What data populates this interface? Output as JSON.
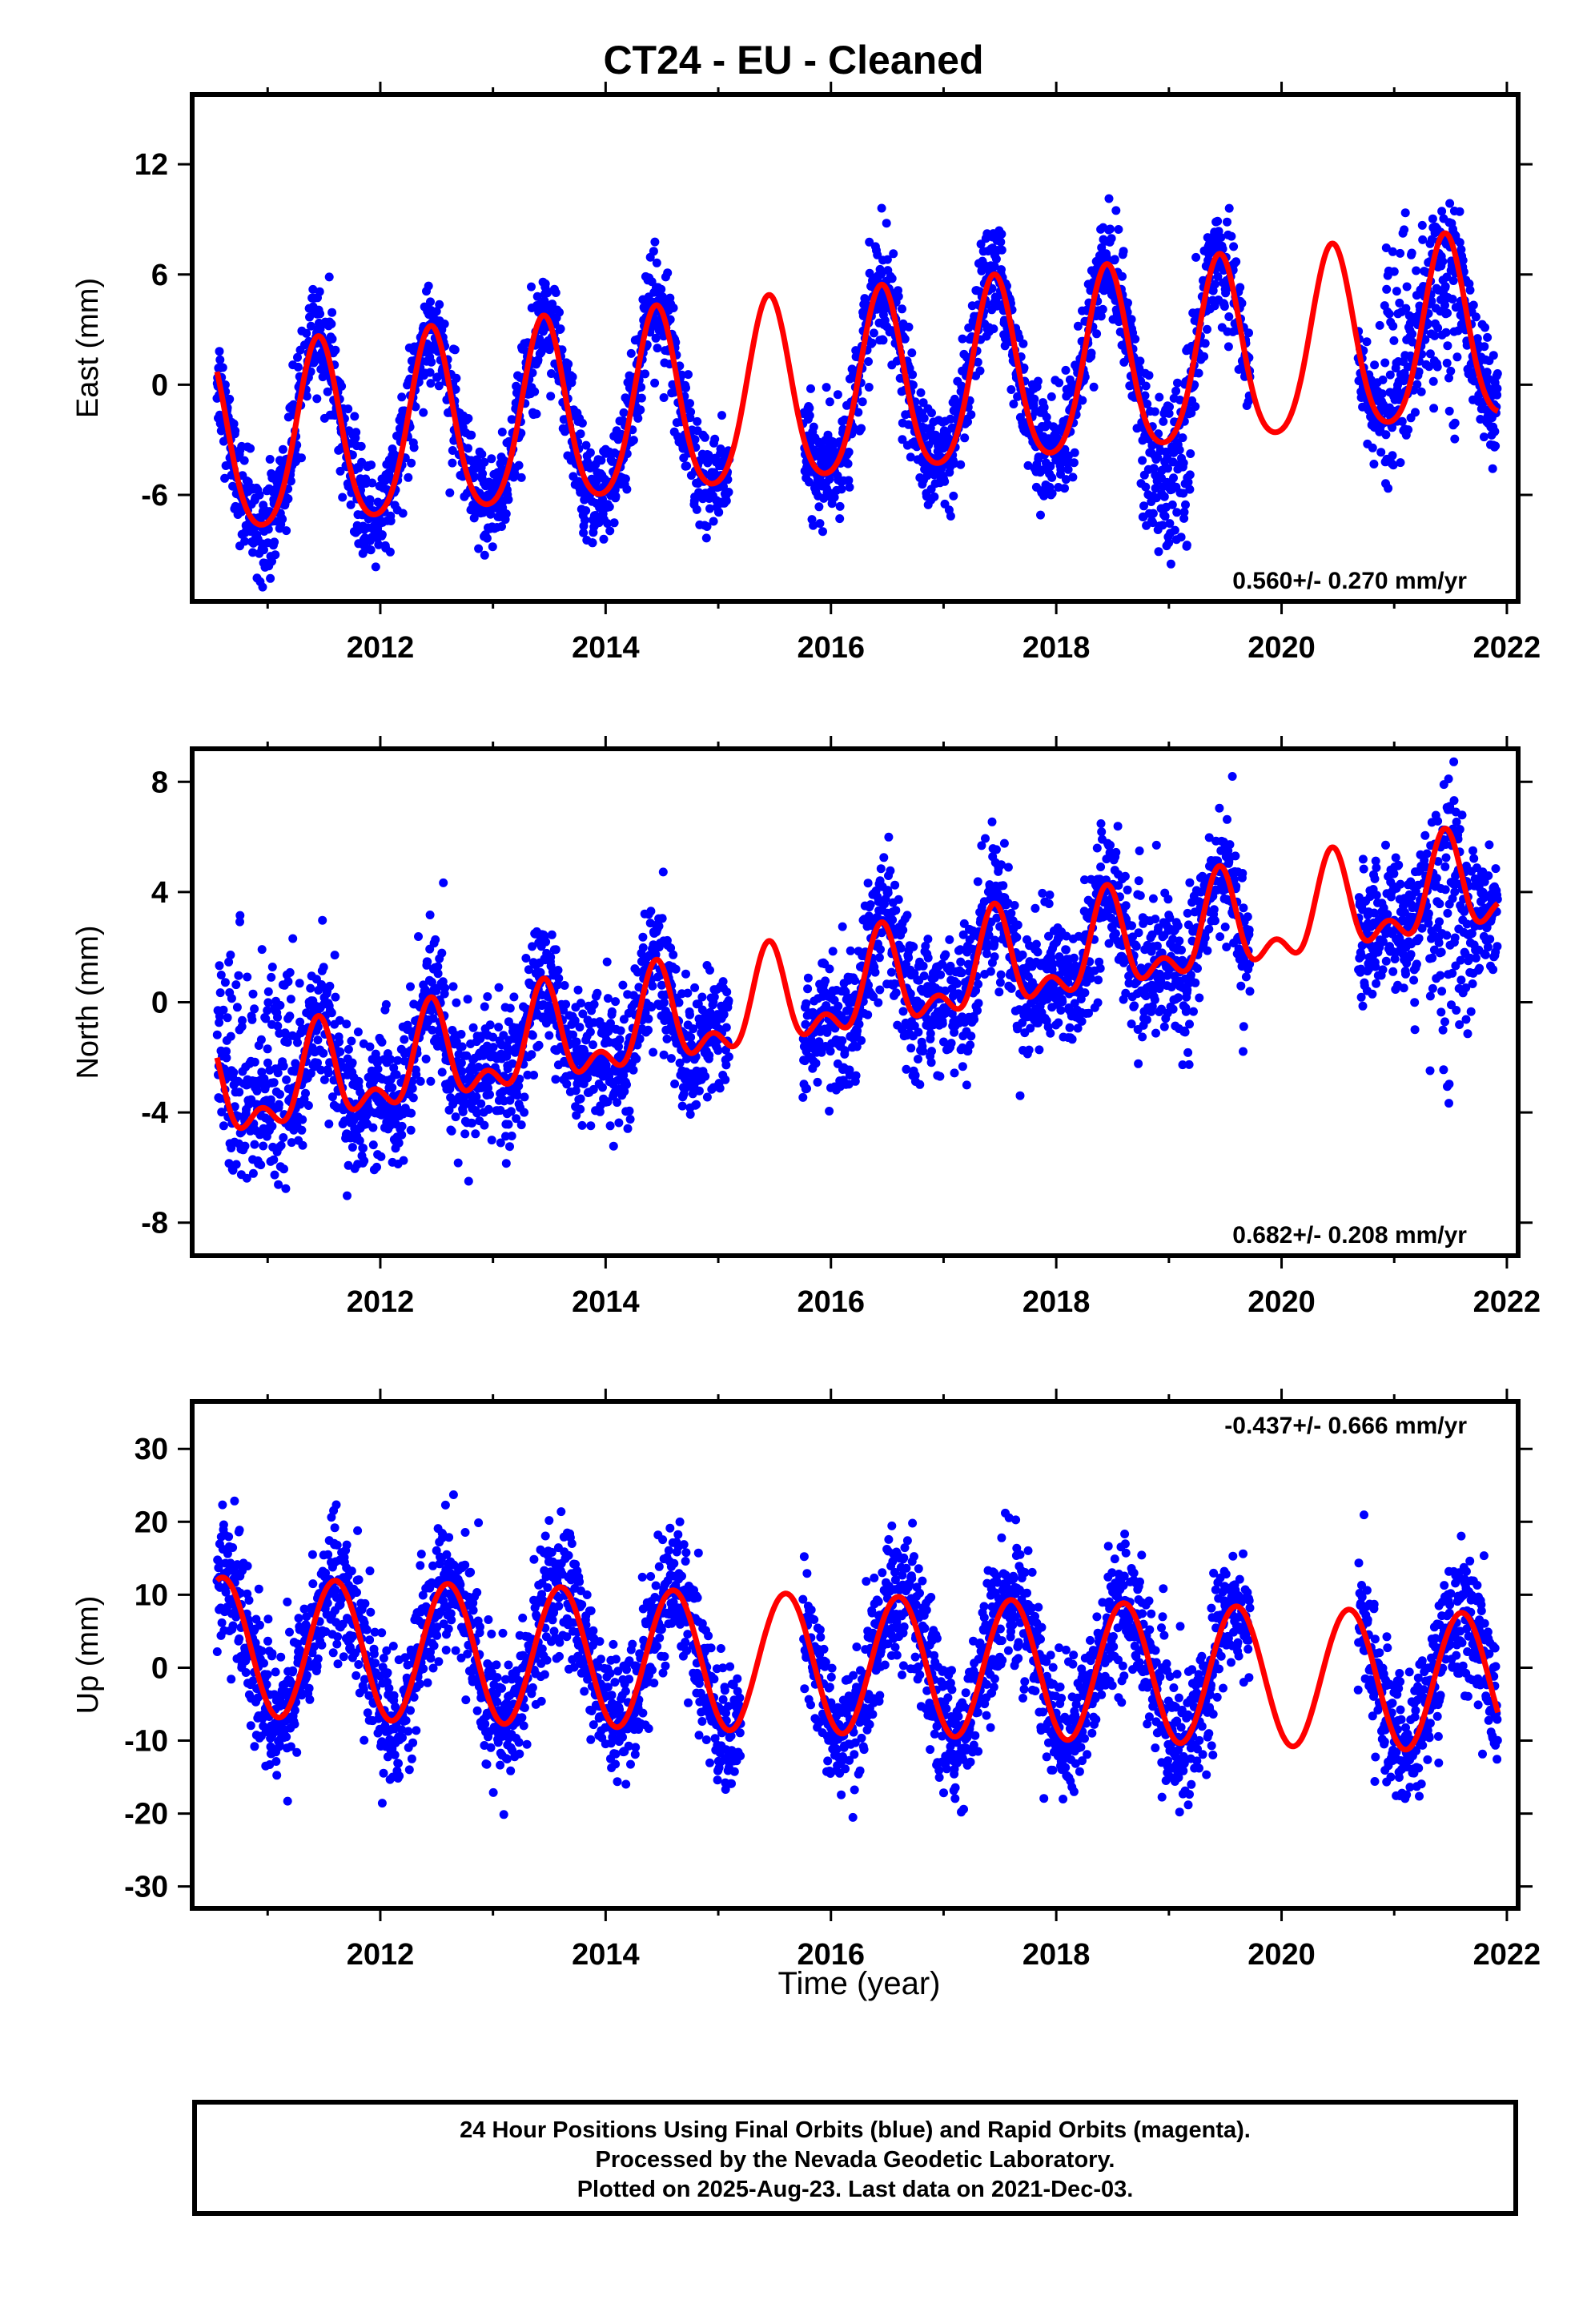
{
  "title": "CT24  - EU - Cleaned",
  "xlabel": "Time (year)",
  "footer": {
    "line1": "24 Hour Positions Using Final Orbits (blue) and Rapid Orbits (magenta).",
    "line2": "Processed by the Nevada Geodetic Laboratory.",
    "line3": "Plotted on 2025-Aug-23. Last data on 2021-Dec-03."
  },
  "colors": {
    "observations": "#0000ff",
    "model": "#ff0000",
    "frame": "#000000"
  },
  "chart_data": [
    {
      "type": "scatter",
      "ylabel": "East (mm)",
      "rate_label": "0.560+/- 0.270 mm/yr",
      "rate_position": "bottom-right",
      "xlim": [
        2010.33,
        2022.1
      ],
      "ylim": [
        -11.8,
        15.8
      ],
      "xticks": [
        2012,
        2014,
        2016,
        2018,
        2020,
        2022
      ],
      "yticks": [
        -6,
        0,
        6,
        12
      ],
      "gaps": [
        [
          2015.1,
          2015.75
        ],
        [
          2019.72,
          2020.68
        ]
      ],
      "model": {
        "trend_mm_per_yr": 0.56,
        "annual_amp_mm": 5.0,
        "annual_peak": 0.45,
        "semiannual_amp_mm": 0.7,
        "offset_mm": -0.5,
        "ref_year": 2016.0
      },
      "outlier_segments": [
        {
          "from": 2018.75,
          "to": 2019.2,
          "center_mm": -6.0,
          "spread_mm": 2.0
        },
        {
          "from": 2020.9,
          "to": 2021.6,
          "center_mm": 3.5,
          "spread_mm": 2.5
        }
      ]
    },
    {
      "type": "scatter",
      "ylabel": "North (mm)",
      "rate_label": "0.682+/- 0.208 mm/yr",
      "rate_position": "bottom-right",
      "xlim": [
        2010.33,
        2022.1
      ],
      "ylim": [
        -9.2,
        9.2
      ],
      "xticks": [
        2012,
        2014,
        2016,
        2018,
        2020,
        2022
      ],
      "yticks": [
        -8,
        -4,
        0,
        4,
        8
      ],
      "gaps": [
        [
          2015.1,
          2015.75
        ],
        [
          2019.72,
          2020.68
        ]
      ],
      "model": {
        "trend_mm_per_yr": 0.68,
        "annual_amp_mm": 1.5,
        "annual_peak": 0.45,
        "semiannual_amp_mm": 0.9,
        "offset_mm": 0.2,
        "ref_year": 2016.0
      },
      "outlier_segments": [
        {
          "from": 2010.5,
          "to": 2011.3,
          "center_mm": -1.5,
          "spread_mm": 2.0
        },
        {
          "from": 2021.3,
          "to": 2021.7,
          "center_mm": 1.5,
          "spread_mm": 2.0
        }
      ]
    },
    {
      "type": "scatter",
      "ylabel": "Up (mm)",
      "rate_label": "-0.437+/- 0.666 mm/yr",
      "rate_position": "top-right",
      "xlim": [
        2010.33,
        2022.1
      ],
      "ylim": [
        -33.0,
        36.5
      ],
      "xticks": [
        2012,
        2014,
        2016,
        2018,
        2020,
        2022
      ],
      "yticks": [
        -30,
        -20,
        -10,
        0,
        10,
        20,
        30
      ],
      "gaps": [
        [
          2015.2,
          2015.75
        ],
        [
          2019.72,
          2020.68
        ]
      ],
      "model": {
        "trend_mm_per_yr": -0.44,
        "annual_amp_mm": 9.5,
        "annual_peak": 0.6,
        "semiannual_amp_mm": 0.0,
        "offset_mm": 0.5,
        "ref_year": 2016.0
      },
      "outlier_segments": []
    }
  ]
}
